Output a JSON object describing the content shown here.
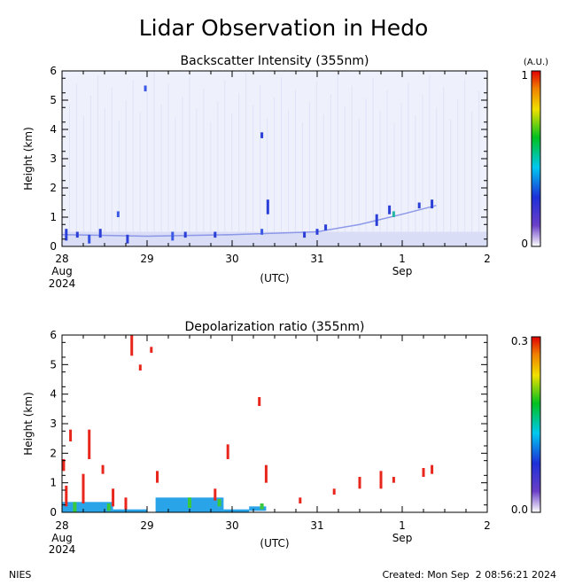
{
  "page": {
    "title": "Lidar Observation in Hedo",
    "footer_left": "NIES",
    "footer_right": "Created: Mon Sep  2 08:56:21 2024"
  },
  "chart_data": [
    {
      "type": "heatmap",
      "title": "Backscatter Intensity (355nm)",
      "ylabel": "Height (km)",
      "xlabel": "(UTC)",
      "xlim": [
        0,
        5
      ],
      "ylim": [
        0,
        6
      ],
      "x_ticks": [
        {
          "value": 0,
          "label": "28",
          "sub": "Aug",
          "sub2": "2024"
        },
        {
          "value": 1,
          "label": "29",
          "sub": "",
          "sub2": ""
        },
        {
          "value": 2,
          "label": "30",
          "sub": "",
          "sub2": ""
        },
        {
          "value": 3,
          "label": "31",
          "sub": "",
          "sub2": ""
        },
        {
          "value": 4,
          "label": "1",
          "sub": "Sep",
          "sub2": ""
        },
        {
          "value": 5,
          "label": "2",
          "sub": "",
          "sub2": ""
        }
      ],
      "y_ticks": [
        0,
        1,
        2,
        3,
        4,
        5,
        6
      ],
      "colorbar": {
        "unit": "(A.U.)",
        "min_label": "0",
        "max_label": "1"
      },
      "background_color": "#eef0fb",
      "features": [
        {
          "x": 0.05,
          "y0": 0.2,
          "y1": 0.6,
          "color": "#2a3fd8"
        },
        {
          "x": 0.18,
          "y0": 0.3,
          "y1": 0.5,
          "color": "#2a3fd8"
        },
        {
          "x": 0.32,
          "y0": 0.1,
          "y1": 0.4,
          "color": "#3550e0"
        },
        {
          "x": 0.45,
          "y0": 0.3,
          "y1": 0.6,
          "color": "#2a3fd8"
        },
        {
          "x": 0.66,
          "y0": 1.0,
          "y1": 1.2,
          "color": "#3a5ae6"
        },
        {
          "x": 0.77,
          "y0": 0.1,
          "y1": 0.4,
          "color": "#2a3fd8"
        },
        {
          "x": 0.98,
          "y0": 5.3,
          "y1": 5.5,
          "color": "#3a5ae6"
        },
        {
          "x": 1.3,
          "y0": 0.2,
          "y1": 0.5,
          "color": "#3a5ae6"
        },
        {
          "x": 1.45,
          "y0": 0.3,
          "y1": 0.5,
          "color": "#2a3fd8"
        },
        {
          "x": 1.8,
          "y0": 0.3,
          "y1": 0.5,
          "color": "#2a3fd8"
        },
        {
          "x": 2.35,
          "y0": 0.4,
          "y1": 0.6,
          "color": "#3a5ae6"
        },
        {
          "x": 2.35,
          "y0": 3.7,
          "y1": 3.9,
          "color": "#2a3fd8"
        },
        {
          "x": 2.42,
          "y0": 1.1,
          "y1": 1.6,
          "color": "#2a3fd8"
        },
        {
          "x": 2.85,
          "y0": 0.3,
          "y1": 0.5,
          "color": "#2a3fd8"
        },
        {
          "x": 3.0,
          "y0": 0.4,
          "y1": 0.6,
          "color": "#2a3fd8"
        },
        {
          "x": 3.1,
          "y0": 0.55,
          "y1": 0.75,
          "color": "#2a3fd8"
        },
        {
          "x": 3.7,
          "y0": 0.7,
          "y1": 1.1,
          "color": "#2a3fd8"
        },
        {
          "x": 3.85,
          "y0": 1.1,
          "y1": 1.4,
          "color": "#2a3fd8"
        },
        {
          "x": 3.9,
          "y0": 1.0,
          "y1": 1.2,
          "color": "#25b6a8"
        },
        {
          "x": 4.2,
          "y0": 1.3,
          "y1": 1.5,
          "color": "#2a3fd8"
        },
        {
          "x": 4.35,
          "y0": 1.3,
          "y1": 1.6,
          "color": "#2a3fd8"
        }
      ],
      "cloud_base_line": [
        {
          "x": 0.0,
          "y": 0.4
        },
        {
          "x": 1.0,
          "y": 0.35
        },
        {
          "x": 2.0,
          "y": 0.4
        },
        {
          "x": 2.5,
          "y": 0.45
        },
        {
          "x": 3.0,
          "y": 0.5
        },
        {
          "x": 3.5,
          "y": 0.75
        },
        {
          "x": 4.0,
          "y": 1.1
        },
        {
          "x": 4.4,
          "y": 1.4
        }
      ]
    },
    {
      "type": "heatmap",
      "title": "Depolarization ratio (355nm)",
      "ylabel": "Height (km)",
      "xlabel": "(UTC)",
      "xlim": [
        0,
        5
      ],
      "ylim": [
        0,
        6
      ],
      "x_ticks": [
        {
          "value": 0,
          "label": "28",
          "sub": "Aug",
          "sub2": "2024"
        },
        {
          "value": 1,
          "label": "29",
          "sub": "",
          "sub2": ""
        },
        {
          "value": 2,
          "label": "30",
          "sub": "",
          "sub2": ""
        },
        {
          "value": 3,
          "label": "31",
          "sub": "",
          "sub2": ""
        },
        {
          "value": 4,
          "label": "1",
          "sub": "Sep",
          "sub2": ""
        },
        {
          "value": 5,
          "label": "2",
          "sub": "",
          "sub2": ""
        }
      ],
      "y_ticks": [
        0,
        1,
        2,
        3,
        4,
        5,
        6
      ],
      "colorbar": {
        "unit": "",
        "min_label": "0.0",
        "max_label": "0.3"
      },
      "background_color": "#ffffff",
      "features": [
        {
          "x": 0.02,
          "y0": 1.4,
          "y1": 1.8,
          "color": "#e8261c"
        },
        {
          "x": 0.05,
          "y0": 0.2,
          "y1": 0.9,
          "color": "#e8261c"
        },
        {
          "x": 0.1,
          "y0": 2.4,
          "y1": 2.8,
          "color": "#e8261c"
        },
        {
          "x": 0.25,
          "y0": 0.3,
          "y1": 1.3,
          "color": "#e8261c"
        },
        {
          "x": 0.32,
          "y0": 1.8,
          "y1": 2.8,
          "color": "#e8261c"
        },
        {
          "x": 0.48,
          "y0": 1.3,
          "y1": 1.6,
          "color": "#e8261c"
        },
        {
          "x": 0.6,
          "y0": 0.2,
          "y1": 0.8,
          "color": "#e8261c"
        },
        {
          "x": 0.75,
          "y0": 0.1,
          "y1": 0.5,
          "color": "#e8261c"
        },
        {
          "x": 0.82,
          "y0": 5.3,
          "y1": 6.0,
          "color": "#e8261c"
        },
        {
          "x": 0.92,
          "y0": 4.8,
          "y1": 5.0,
          "color": "#e8261c"
        },
        {
          "x": 1.05,
          "y0": 5.4,
          "y1": 5.6,
          "color": "#e8261c"
        },
        {
          "x": 1.12,
          "y0": 1.0,
          "y1": 1.4,
          "color": "#e8261c"
        },
        {
          "x": 1.8,
          "y0": 0.4,
          "y1": 0.8,
          "color": "#e8261c"
        },
        {
          "x": 1.95,
          "y0": 1.8,
          "y1": 2.3,
          "color": "#e8261c"
        },
        {
          "x": 2.32,
          "y0": 3.6,
          "y1": 3.9,
          "color": "#e8261c"
        },
        {
          "x": 2.4,
          "y0": 1.0,
          "y1": 1.6,
          "color": "#e8261c"
        },
        {
          "x": 2.8,
          "y0": 0.3,
          "y1": 0.5,
          "color": "#e8261c"
        },
        {
          "x": 3.2,
          "y0": 0.6,
          "y1": 0.8,
          "color": "#e8261c"
        },
        {
          "x": 3.5,
          "y0": 0.8,
          "y1": 1.2,
          "color": "#e8261c"
        },
        {
          "x": 3.75,
          "y0": 0.8,
          "y1": 1.4,
          "color": "#e8261c"
        },
        {
          "x": 3.9,
          "y0": 1.0,
          "y1": 1.2,
          "color": "#e8261c"
        },
        {
          "x": 4.25,
          "y0": 1.2,
          "y1": 1.5,
          "color": "#e8261c"
        },
        {
          "x": 4.35,
          "y0": 1.3,
          "y1": 1.6,
          "color": "#e8261c"
        }
      ],
      "aerosol_layer": [
        {
          "x0": 0.0,
          "x1": 0.6,
          "y0": 0.0,
          "y1": 0.35,
          "color": "#2aa4e8"
        },
        {
          "x0": 0.6,
          "x1": 1.0,
          "y0": 0.0,
          "y1": 0.1,
          "color": "#2aa4e8"
        },
        {
          "x0": 1.1,
          "x1": 1.9,
          "y0": 0.0,
          "y1": 0.5,
          "color": "#2aa4e8"
        },
        {
          "x0": 1.9,
          "x1": 2.2,
          "y0": 0.0,
          "y1": 0.1,
          "color": "#2aa4e8"
        },
        {
          "x0": 2.2,
          "x1": 2.4,
          "y0": 0.05,
          "y1": 0.2,
          "color": "#2aa4e8"
        }
      ],
      "green_spots": [
        {
          "x": 0.15,
          "y0": 0.0,
          "y1": 0.35
        },
        {
          "x": 0.55,
          "y0": 0.05,
          "y1": 0.3
        },
        {
          "x": 1.5,
          "y0": 0.15,
          "y1": 0.5
        },
        {
          "x": 1.85,
          "y0": 0.2,
          "y1": 0.45
        },
        {
          "x": 2.35,
          "y0": 0.1,
          "y1": 0.3
        }
      ]
    }
  ]
}
